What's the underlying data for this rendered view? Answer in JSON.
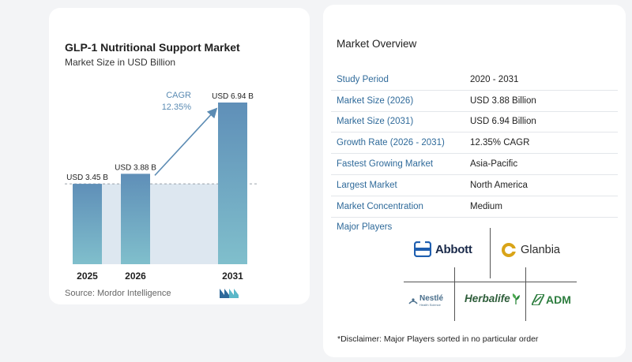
{
  "chart_data": {
    "type": "bar",
    "title": "GLP-1 Nutritional Support Market",
    "subtitle": "Market Size in USD Billion",
    "categories": [
      "2025",
      "2026",
      "2031"
    ],
    "values": [
      3.45,
      3.88,
      6.94
    ],
    "data_labels": [
      "USD 3.45 B",
      "USD 3.88 B",
      "USD 6.94 B"
    ],
    "ylim": [
      0,
      6.94
    ],
    "annotation": {
      "label": "CAGR",
      "value": "12.35%"
    },
    "colors": {
      "bar_top": "#5f8fb8",
      "bar_bottom": "#80bfcc",
      "shade": "#dde7f0"
    }
  },
  "source": "Source:  Mordor Intelligence",
  "overview": {
    "title": "Market Overview",
    "rows": [
      {
        "label": "Study Period",
        "value": "2020 - 2031"
      },
      {
        "label": "Market Size (2026)",
        "value": "USD 3.88 Billion"
      },
      {
        "label": "Market Size (2031)",
        "value": "USD 6.94 Billion"
      },
      {
        "label": "Growth Rate (2026 - 2031)",
        "value": "12.35% CAGR"
      },
      {
        "label": "Fastest Growing Market",
        "value": "Asia-Pacific"
      },
      {
        "label": "Largest Market",
        "value": "North America"
      },
      {
        "label": "Market Concentration",
        "value": "Medium"
      }
    ]
  },
  "players": {
    "title": "Major Players",
    "abbott": "Abbott",
    "glanbia": "Glanbia",
    "nestle": "Nestlé",
    "nestle_sub": "Health Science",
    "herbalife": "Herbalife",
    "adm": "ADM"
  },
  "disclaimer": "*Disclaimer: Major Players sorted in no particular order",
  "icons": {
    "brand": "mordor-logo-icon"
  }
}
